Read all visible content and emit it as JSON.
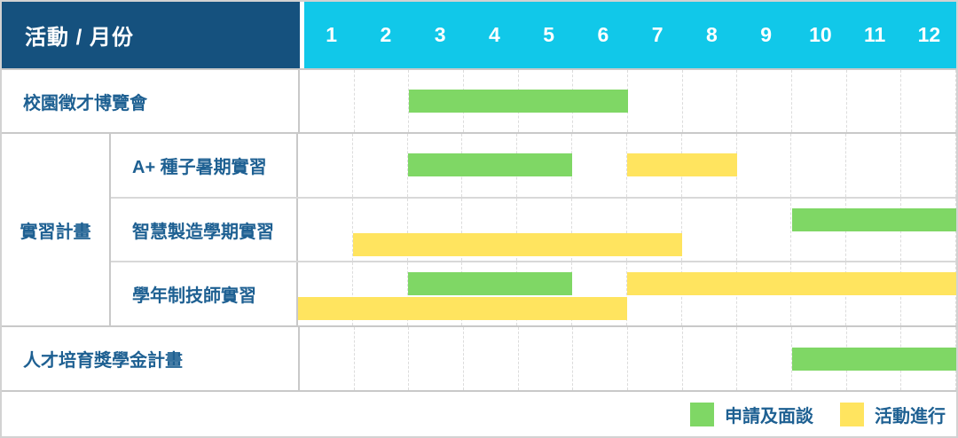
{
  "header": {
    "corner_label": "活動 / 月份",
    "months": [
      "1",
      "2",
      "3",
      "4",
      "5",
      "6",
      "7",
      "8",
      "9",
      "10",
      "11",
      "12"
    ]
  },
  "colors": {
    "header_bg": "#15517E",
    "months_bg": "#11C8E9",
    "green": "#7FD765",
    "yellow": "#FFE45F",
    "label_text": "#1E6092"
  },
  "rows": [
    {
      "type": "single",
      "label": "校園徵才博覽會",
      "bars": [
        {
          "color": "green",
          "start": 3,
          "end": 6,
          "line": "center"
        }
      ]
    },
    {
      "type": "group",
      "label": "實習計畫",
      "children": [
        {
          "label": "A+ 種子暑期實習",
          "bars": [
            {
              "color": "green",
              "start": 3,
              "end": 5,
              "line": "center"
            },
            {
              "color": "yellow",
              "start": 7,
              "end": 8,
              "line": "center"
            }
          ]
        },
        {
          "label": "智慧製造學期實習",
          "bars": [
            {
              "color": "green",
              "start": 10,
              "end": 12,
              "line": "top"
            },
            {
              "color": "yellow",
              "start": 2,
              "end": 7,
              "line": "bottom"
            }
          ]
        },
        {
          "label": "學年制技師實習",
          "bars": [
            {
              "color": "green",
              "start": 3,
              "end": 5,
              "line": "top"
            },
            {
              "color": "yellow",
              "start": 7,
              "end": 12,
              "line": "top"
            },
            {
              "color": "yellow",
              "start": 1,
              "end": 6,
              "line": "bottom"
            }
          ]
        }
      ]
    },
    {
      "type": "single",
      "label": "人才培育獎學金計畫",
      "bars": [
        {
          "color": "green",
          "start": 10,
          "end": 12,
          "line": "center"
        }
      ]
    }
  ],
  "legend": {
    "items": [
      {
        "color": "green",
        "label": "申請及面談"
      },
      {
        "color": "yellow",
        "label": "活動進行"
      }
    ]
  },
  "chart_data": {
    "type": "table",
    "subtype": "gantt",
    "title": "活動 / 月份",
    "x_axis": {
      "label": "月份",
      "ticks": [
        "1",
        "2",
        "3",
        "4",
        "5",
        "6",
        "7",
        "8",
        "9",
        "10",
        "11",
        "12"
      ],
      "range": [
        1,
        12
      ]
    },
    "grid": "on",
    "legend_position": "bottom-right",
    "tasks": [
      {
        "activity": "校園徵才博覽會",
        "group": null,
        "phases": [
          {
            "phase": "申請及面談",
            "months": [
              3,
              6
            ]
          }
        ]
      },
      {
        "activity": "A+ 種子暑期實習",
        "group": "實習計畫",
        "phases": [
          {
            "phase": "申請及面談",
            "months": [
              3,
              5
            ]
          },
          {
            "phase": "活動進行",
            "months": [
              7,
              8
            ]
          }
        ]
      },
      {
        "activity": "智慧製造學期實習",
        "group": "實習計畫",
        "phases": [
          {
            "phase": "申請及面談",
            "months": [
              10,
              12
            ]
          },
          {
            "phase": "活動進行",
            "months": [
              2,
              7
            ]
          }
        ]
      },
      {
        "activity": "學年制技師實習",
        "group": "實習計畫",
        "phases": [
          {
            "phase": "申請及面談",
            "months": [
              3,
              5
            ]
          },
          {
            "phase": "活動進行",
            "months": [
              7,
              12
            ]
          },
          {
            "phase": "活動進行",
            "months": [
              1,
              6
            ]
          }
        ]
      },
      {
        "activity": "人才培育獎學金計畫",
        "group": null,
        "phases": [
          {
            "phase": "申請及面談",
            "months": [
              10,
              12
            ]
          }
        ]
      }
    ],
    "legend_entries": [
      {
        "label": "申請及面談",
        "color": "#7FD765"
      },
      {
        "label": "活動進行",
        "color": "#FFE45F"
      }
    ]
  }
}
